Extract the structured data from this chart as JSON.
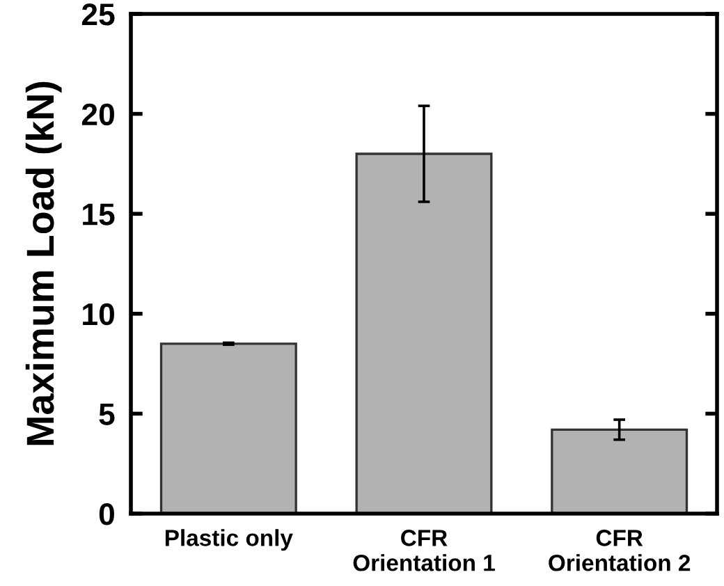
{
  "chart_data": {
    "type": "bar",
    "ylabel": "Maximum Load (kN)",
    "categories": [
      "Plastic only",
      "CFR\nOrientation 1",
      "CFR\nOrientation 2"
    ],
    "values": [
      8.5,
      18.0,
      4.2
    ],
    "errors": [
      0.05,
      2.4,
      0.5
    ],
    "color": "#b2b2b2",
    "ylim": [
      0,
      25
    ],
    "yticks": [
      0,
      5,
      10,
      15,
      20,
      25
    ],
    "grid": false
  }
}
